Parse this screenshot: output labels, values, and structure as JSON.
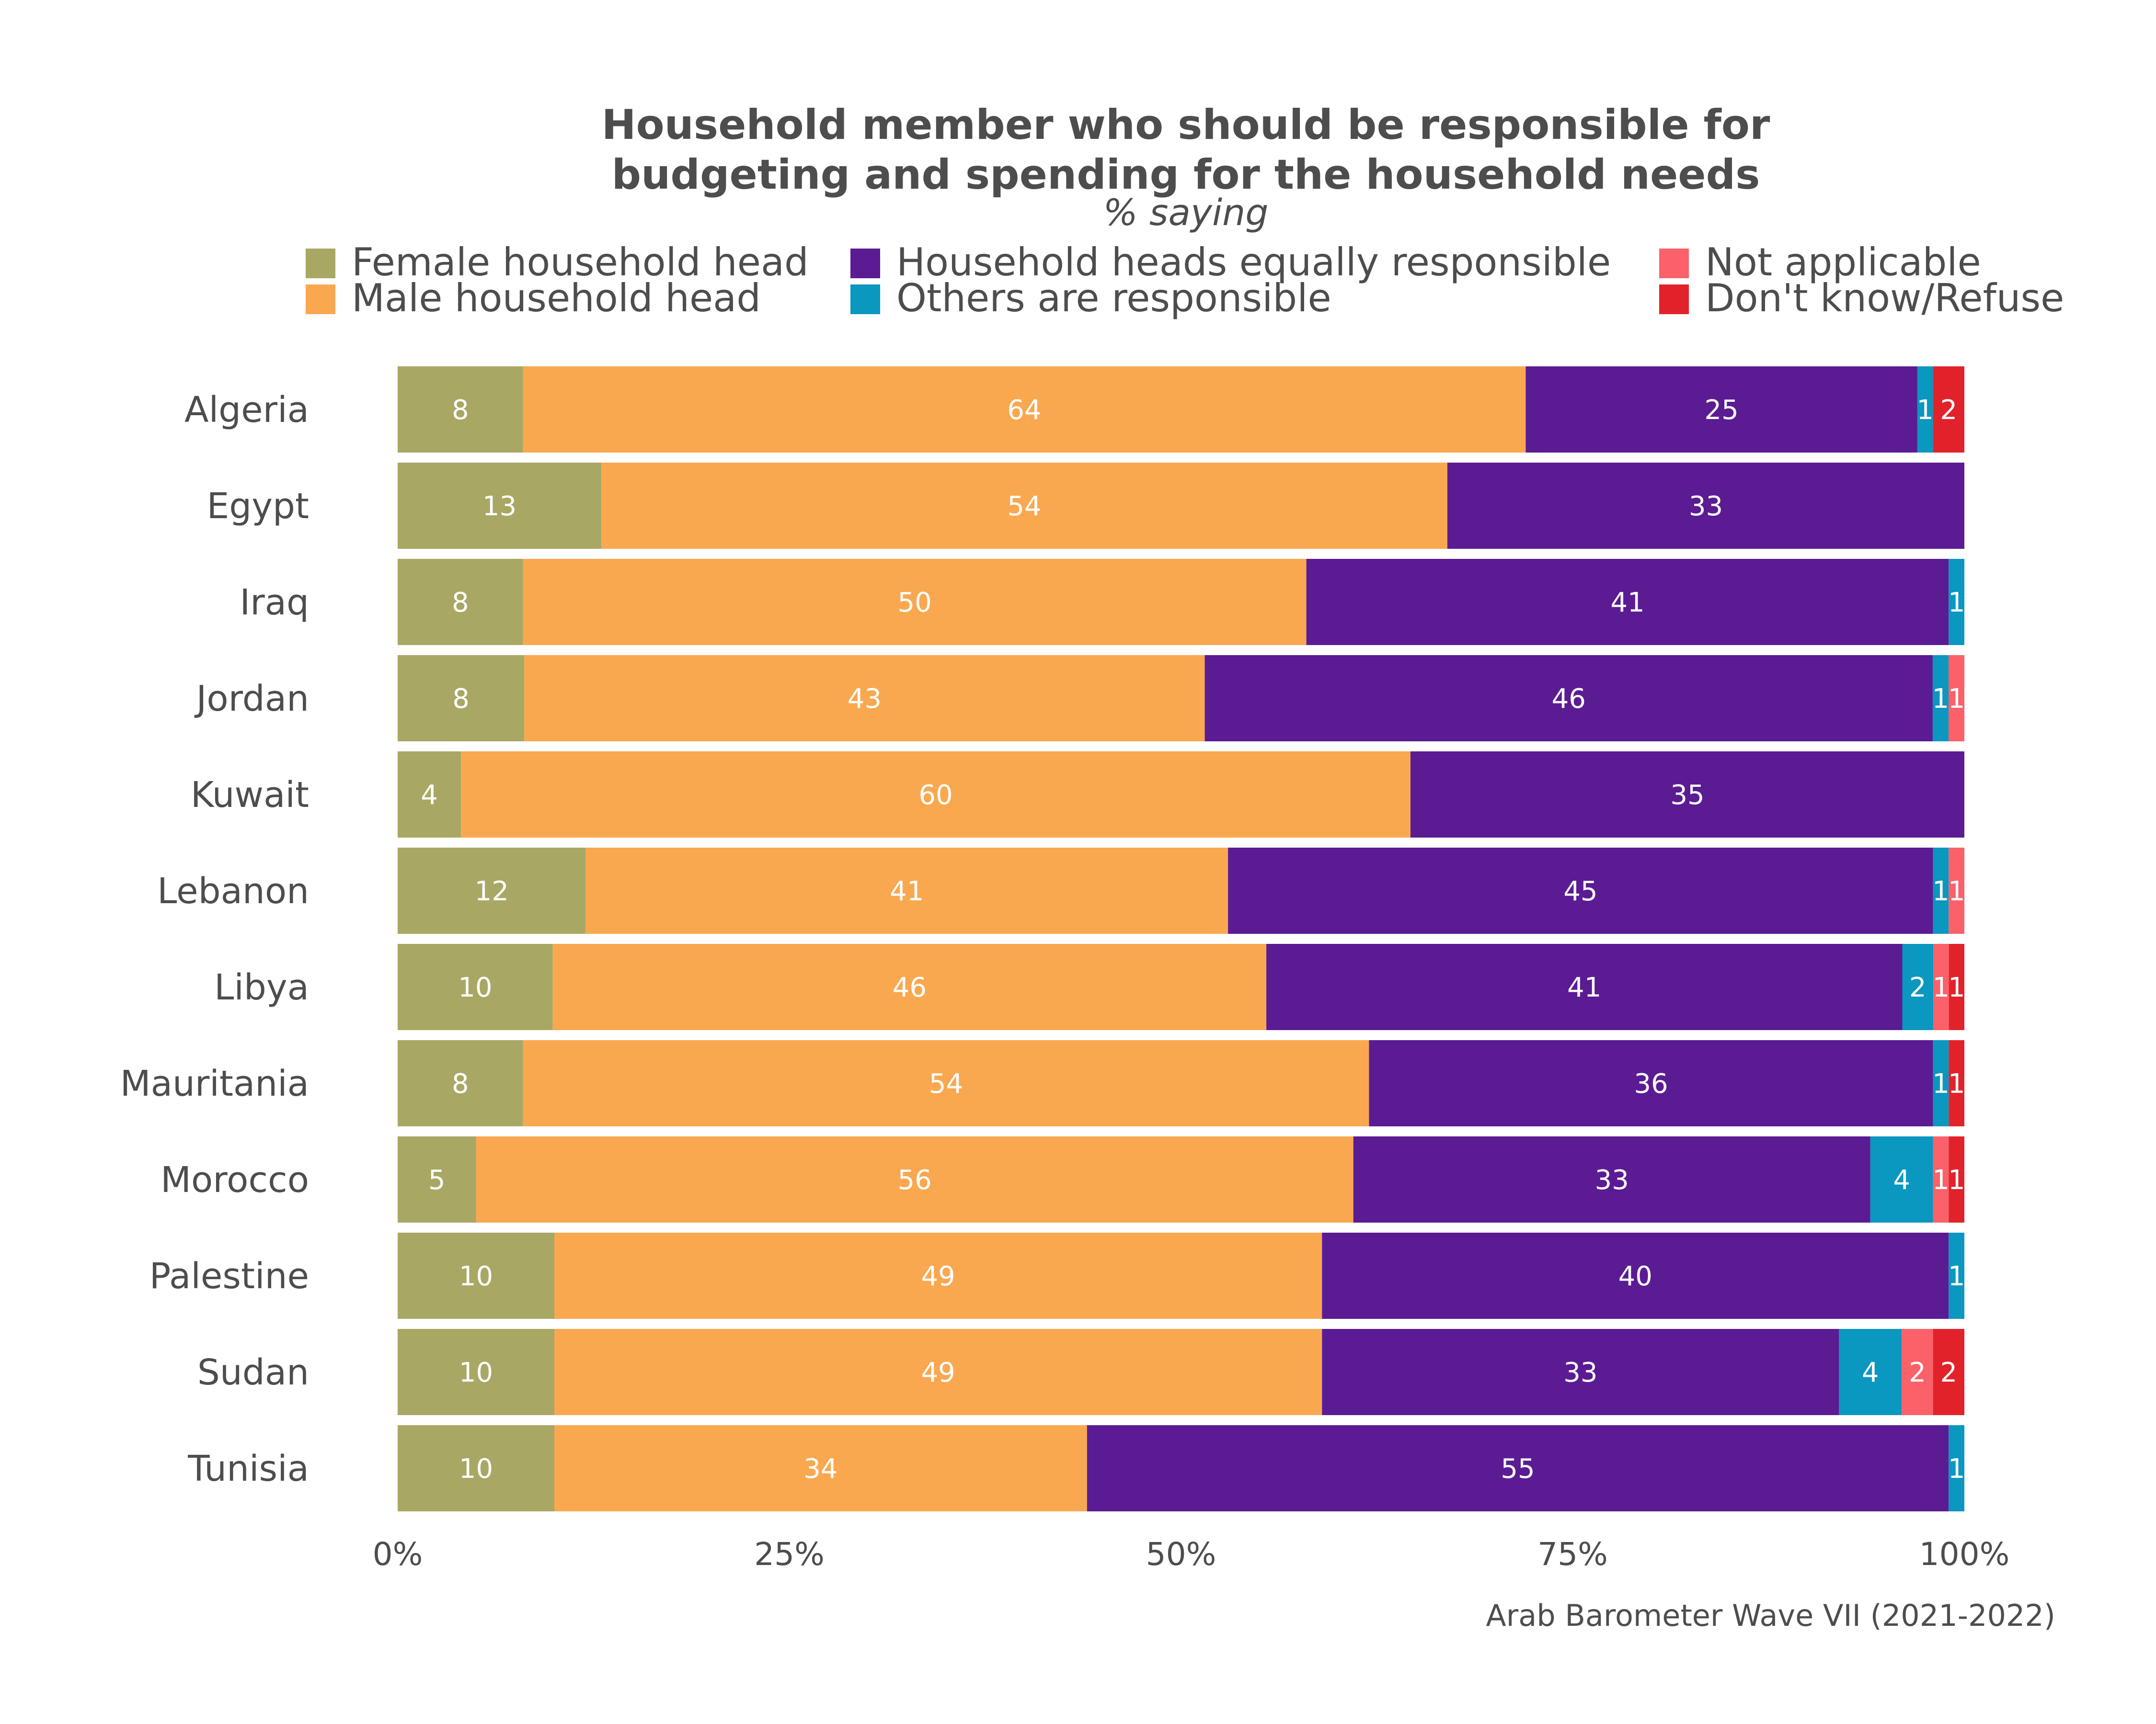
{
  "chart_data": {
    "type": "bar",
    "orientation": "horizontal",
    "stacked": true,
    "title_lines": [
      "Household member who should be responsible for",
      "budgeting and spending for the household needs"
    ],
    "subtitle": "% saying",
    "caption": "Arab Barometer Wave VII (2021-2022)",
    "legend_position": "top",
    "xlim": [
      0,
      100
    ],
    "x_ticks": [
      0,
      25,
      50,
      75,
      100
    ],
    "x_tick_labels": [
      "0%",
      "25%",
      "50%",
      "75%",
      "100%"
    ],
    "grid": false,
    "categories": [
      "Algeria",
      "Egypt",
      "Iraq",
      "Jordan",
      "Kuwait",
      "Lebanon",
      "Libya",
      "Mauritania",
      "Morocco",
      "Palestine",
      "Sudan",
      "Tunisia"
    ],
    "series": [
      {
        "name": "Female household head",
        "color": "#a9a764",
        "values": [
          8,
          13,
          8,
          8,
          4,
          12,
          10,
          8,
          5,
          10,
          10,
          10
        ]
      },
      {
        "name": "Male household head",
        "color": "#f9a850",
        "values": [
          64,
          54,
          50,
          43,
          60,
          41,
          46,
          54,
          56,
          49,
          49,
          34
        ]
      },
      {
        "name": "Household heads equally responsible",
        "color": "#5b1b93",
        "values": [
          25,
          33,
          41,
          46,
          35,
          45,
          41,
          36,
          33,
          40,
          33,
          55
        ]
      },
      {
        "name": "Others are responsible",
        "color": "#0a97c0",
        "values": [
          1,
          0,
          1,
          1,
          0,
          1,
          2,
          1,
          4,
          1,
          4,
          1
        ]
      },
      {
        "name": "Not applicable",
        "color": "#fb6169",
        "values": [
          0,
          0,
          0,
          1,
          0,
          1,
          1,
          0,
          1,
          0,
          2,
          0
        ]
      },
      {
        "name": "Don't know/Refuse",
        "color": "#e2222a",
        "values": [
          2,
          0,
          0,
          0,
          0,
          0,
          1,
          1,
          1,
          0,
          2,
          0
        ]
      }
    ]
  }
}
